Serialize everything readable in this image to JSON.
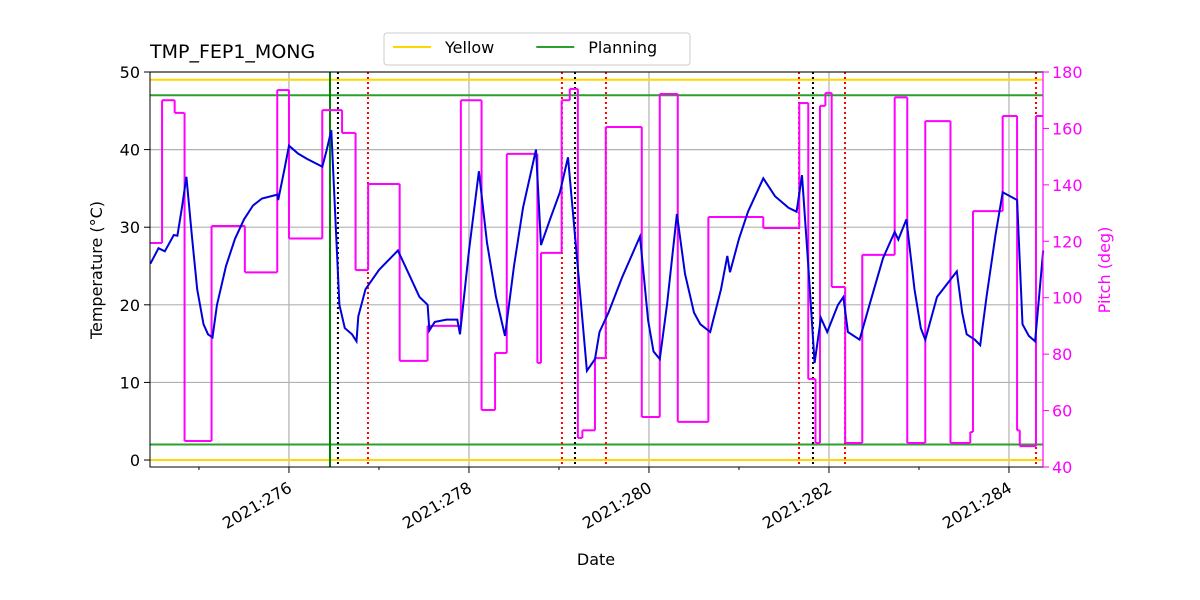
{
  "chart_data": {
    "type": "line",
    "title": "TMP_FEP1_MONG",
    "xlabel": "Date",
    "ylabel": "Temperature (°C)",
    "y2label": "Pitch (deg)",
    "y2color": "#ff00ff",
    "xlim": [
      274.456,
      284.378
    ],
    "ylim": [
      -0.9,
      50
    ],
    "y2lim": [
      40,
      180
    ],
    "xticks": [
      {
        "value": 276,
        "label": "2021:276"
      },
      {
        "value": 278,
        "label": "2021:278"
      },
      {
        "value": 280,
        "label": "2021:280"
      },
      {
        "value": 282,
        "label": "2021:282"
      },
      {
        "value": 284,
        "label": "2021:284"
      }
    ],
    "xminorticks": [
      275,
      277,
      279,
      281,
      283
    ],
    "yticks": [
      0,
      10,
      20,
      30,
      40,
      50
    ],
    "y2ticks": [
      40,
      60,
      80,
      100,
      120,
      140,
      160,
      180
    ],
    "grid": true,
    "legend": "upper center",
    "hlines": [
      {
        "name": "Yellow",
        "color": "#ffd700",
        "values": [
          0,
          49
        ]
      },
      {
        "name": "Planning",
        "color": "#2ca02c",
        "values": [
          2,
          47
        ]
      }
    ],
    "vlines": [
      {
        "color": "#008000",
        "style": "solid",
        "x": [
          276.456
        ]
      },
      {
        "color": "#000000",
        "style": "dotted",
        "x": [
          276.544,
          279.178,
          281.822
        ]
      },
      {
        "color": "#ff0000",
        "style": "dotted",
        "x": [
          276.878,
          279.033,
          279.522,
          281.667,
          282.178,
          284.3
        ]
      }
    ],
    "series": [
      {
        "color": "#ff00ff",
        "axis": "y2",
        "step": "post",
        "x": [
          274.46,
          274.59,
          274.73,
          274.84,
          275.14,
          275.51,
          275.87,
          276.0,
          276.37,
          276.59,
          276.74,
          276.88,
          277.23,
          277.54,
          277.91,
          278.14,
          278.29,
          278.42,
          278.76,
          278.8,
          279.03,
          279.12,
          279.21,
          279.26,
          279.4,
          279.52,
          279.92,
          280.12,
          280.32,
          280.66,
          281.27,
          281.67,
          281.77,
          281.85,
          281.9,
          281.96,
          282.03,
          282.18,
          282.37,
          282.73,
          282.87,
          283.07,
          283.35,
          283.57,
          283.6,
          283.93,
          284.09,
          284.12,
          284.3
        ],
        "values": [
          119.4,
          170,
          165.5,
          49.2,
          125.4,
          109,
          173.6,
          121,
          166.5,
          158.4,
          109.8,
          140.3,
          77.6,
          90,
          170,
          60.2,
          80.4,
          151,
          76.9,
          115.9,
          170,
          174,
          50.3,
          53,
          78.6,
          160.5,
          57.7,
          172.2,
          56,
          128.6,
          124.7,
          169,
          71.2,
          48.5,
          168,
          172.6,
          103.8,
          48.5,
          115.2,
          171,
          48.5,
          162.6,
          48.5,
          52.4,
          130.7,
          164.4,
          53,
          47.4,
          164.4
        ]
      },
      {
        "color": "#0000dd",
        "x": [
          274.46,
          274.55,
          274.62,
          274.72,
          274.76,
          274.81,
          274.86,
          274.92,
          274.98,
          275.05,
          275.1,
          275.15,
          275.2,
          275.3,
          275.4,
          275.5,
          275.6,
          275.7,
          275.87,
          275.88,
          275.95,
          276.0,
          276.1,
          276.2,
          276.37,
          276.42,
          276.47,
          276.52,
          276.56,
          276.62,
          276.7,
          276.75,
          276.77,
          276.85,
          277.0,
          277.21,
          277.35,
          277.45,
          277.54,
          277.56,
          277.62,
          277.75,
          277.87,
          277.9,
          278.0,
          278.11,
          278.2,
          278.3,
          278.4,
          278.5,
          278.6,
          278.745,
          278.8,
          278.9,
          279.01,
          279.1,
          279.2,
          279.31,
          279.4,
          279.45,
          279.55,
          279.7,
          279.9,
          279.99,
          280.05,
          280.12,
          280.2,
          280.31,
          280.4,
          280.5,
          280.57,
          280.68,
          280.8,
          280.87,
          280.9,
          281.0,
          281.1,
          281.27,
          281.4,
          281.55,
          281.64,
          281.7,
          281.77,
          281.84,
          281.91,
          281.98,
          282.1,
          282.16,
          282.21,
          282.34,
          282.45,
          282.6,
          282.73,
          282.77,
          282.86,
          282.95,
          283.02,
          283.07,
          283.2,
          283.42,
          283.48,
          283.53,
          283.62,
          283.68,
          283.75,
          283.85,
          283.93,
          284.09,
          284.15,
          284.22,
          284.29,
          284.38
        ],
        "values": [
          25.3,
          27.3,
          26.9,
          29.0,
          28.9,
          32.5,
          36.5,
          29,
          22,
          17.5,
          16.2,
          15.8,
          20,
          25,
          28.5,
          31,
          32.8,
          33.7,
          34.2,
          33.5,
          37.5,
          40.5,
          39.5,
          38.8,
          37.8,
          40,
          42.5,
          30,
          20,
          17,
          16.2,
          15.3,
          18.5,
          22,
          24.5,
          27,
          23.5,
          21,
          20,
          16.7,
          17.8,
          18.1,
          18.1,
          16.2,
          27,
          37.2,
          28,
          21,
          16,
          25,
          32.5,
          40,
          27.7,
          31,
          34.5,
          39,
          26,
          11.5,
          13,
          16.5,
          19,
          23.5,
          28.8,
          18,
          14,
          13.0,
          20,
          31.7,
          24,
          19,
          17.5,
          16.5,
          22,
          26.3,
          24.2,
          28.5,
          32,
          36.3,
          34,
          32.5,
          32,
          36.7,
          25,
          12.5,
          18.3,
          16.5,
          20,
          21,
          16.5,
          15.5,
          20,
          26,
          29.4,
          28.4,
          31,
          22,
          17,
          15.5,
          21,
          24.3,
          19,
          16.2,
          15.5,
          14.8,
          21,
          29,
          34.5,
          33.5,
          17.5,
          16,
          15.3,
          27
        ]
      }
    ]
  }
}
